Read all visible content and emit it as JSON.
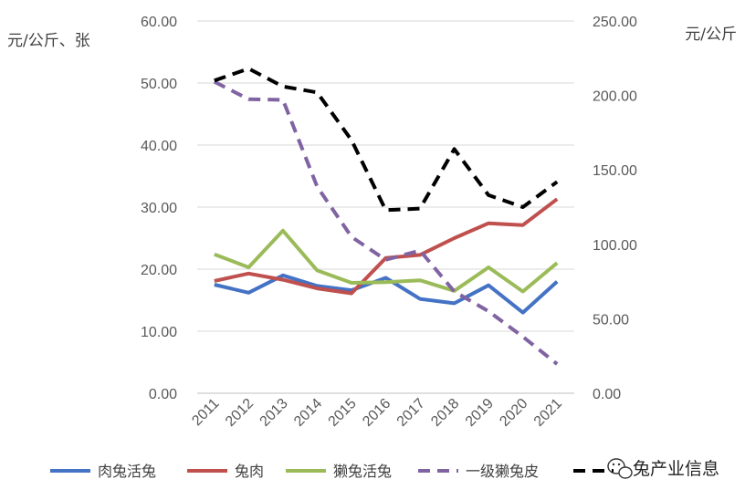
{
  "chart_data": {
    "type": "line",
    "categories": [
      "2011",
      "2012",
      "2013",
      "2014",
      "2015",
      "2016",
      "2017",
      "2018",
      "2019",
      "2020",
      "2021"
    ],
    "left_axis": {
      "unit_label": "元/公斤、张",
      "ticks": [
        "0.00",
        "10.00",
        "20.00",
        "30.00",
        "40.00",
        "50.00",
        "60.00"
      ],
      "range": [
        0,
        60
      ]
    },
    "right_axis": {
      "unit_label": "元/公斤",
      "ticks": [
        "0.00",
        "50.00",
        "100.00",
        "150.00",
        "200.00",
        "250.00"
      ],
      "range": [
        0,
        250
      ]
    },
    "grid": "horizontal",
    "legend_position": "bottom",
    "series": [
      {
        "name": "肉兔活兔",
        "axis": "left",
        "style": "solid",
        "color": "#4472C4",
        "values": [
          17.5,
          16.2,
          19.0,
          17.3,
          16.6,
          18.6,
          15.2,
          14.5,
          17.4,
          13.0,
          18.0
        ]
      },
      {
        "name": "兔肉",
        "axis": "left",
        "style": "solid",
        "color": "#C0504D",
        "values": [
          18.1,
          19.3,
          18.3,
          16.9,
          16.1,
          21.8,
          22.3,
          25.0,
          27.4,
          27.1,
          31.3
        ]
      },
      {
        "name": "獭兔活兔",
        "axis": "left",
        "style": "solid",
        "color": "#9BBB59",
        "values": [
          22.4,
          20.3,
          26.2,
          19.8,
          17.8,
          17.9,
          18.2,
          16.5,
          20.3,
          16.4,
          21.0
        ]
      },
      {
        "name": "一级獭兔皮",
        "axis": "left",
        "style": "dashed",
        "color": "#8064A2",
        "values": [
          50.2,
          47.4,
          47.3,
          33.3,
          25.2,
          21.5,
          23.0,
          16.4,
          13.2,
          9.1,
          4.7
        ]
      },
      {
        "name": "",
        "axis": "right",
        "style": "dashed",
        "color": "#000000",
        "values": [
          210,
          218,
          206,
          202,
          170,
          123,
          124,
          164,
          133,
          125,
          142
        ]
      }
    ]
  },
  "watermark": {
    "text": "兔产业信息"
  }
}
